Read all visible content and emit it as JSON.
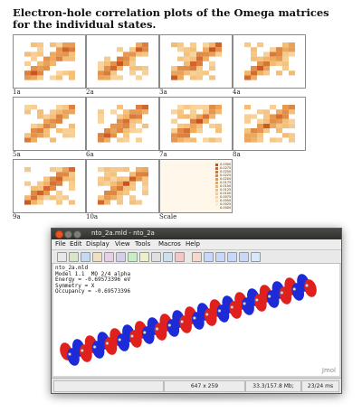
{
  "document": {
    "title": "Electron-hole correlation plots of the Omega matrices for the individual states."
  },
  "thumbnails": [
    {
      "caption": "1a"
    },
    {
      "caption": "2a"
    },
    {
      "caption": "3a"
    },
    {
      "caption": "4a"
    },
    {
      "caption": "5a"
    },
    {
      "caption": "6a"
    },
    {
      "caption": "7a"
    },
    {
      "caption": "8a"
    },
    {
      "caption": "9a"
    },
    {
      "caption": "10a"
    },
    {
      "caption": "Scale"
    }
  ],
  "scale_legend": [
    "0.0300",
    "0.0275",
    "0.0250",
    "0.0225",
    "0.0200",
    "0.0175",
    "0.0150",
    "0.0125",
    "0.0100",
    "0.0075",
    "0.0050",
    "0.0025",
    "0.0000"
  ],
  "colors": {
    "heat_low": "#fff6dc",
    "heat_mid": "#f2b566",
    "heat_high": "#c8501c",
    "close_btn": "#e95420",
    "red_lobe": "#e0201c",
    "blue_lobe": "#1c2ad8"
  },
  "jmol": {
    "window_title": "nto_2a.mld - nto_2a",
    "menus": [
      "File",
      "Edit",
      "Display",
      "View",
      "Tools",
      "Macros",
      "Help"
    ],
    "info_lines": [
      "nto_2a.mld",
      "Model 1.1  MO 2/4 alpha",
      "Energy = -0.69573396 eV",
      "Symmetry = X",
      "Occupancy = -0.69573396"
    ],
    "watermark": "Jmol",
    "status": {
      "size": "647 x 259",
      "memory": "33.3/157.8 Mb;",
      "time": "23/24 ms"
    },
    "toolbar_icons": [
      "open-file-icon",
      "save-icon",
      "rotate-icon",
      "pick-icon",
      "script-icon",
      "print-icon",
      "select-icon",
      "measure-icon",
      "edit-icon",
      "spin-icon",
      "cancel-icon",
      "home-icon",
      "first-frame-icon",
      "prev-frame-icon",
      "next-frame-icon",
      "last-frame-icon",
      "vibration-icon"
    ]
  }
}
